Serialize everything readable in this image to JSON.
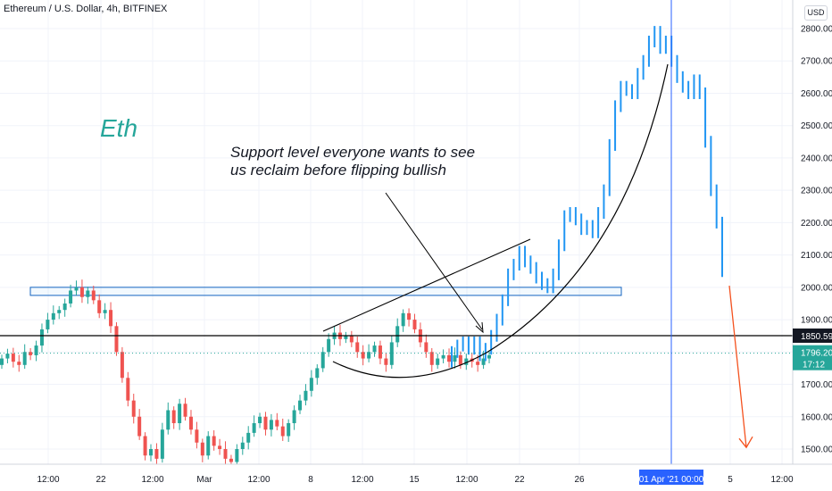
{
  "header": {
    "title": "Ethereum / U.S. Dollar, 4h, BITFINEX",
    "currency_button": "USD"
  },
  "annotations": {
    "label": "Eth",
    "note_line1": "Support level everyone wants to see",
    "note_line2": "us reclaim before flipping bullish"
  },
  "price_tags": {
    "black_line": "1850.59",
    "last_price": "1796.20",
    "countdown": "17:12"
  },
  "colors": {
    "up": "#26a69a",
    "down": "#ef5350",
    "heikin_blue": "#2196f3",
    "arrow": "#f4511e",
    "box": "#1565c0",
    "crosshair": "#2962ff"
  },
  "chart_data": {
    "type": "candlestick",
    "title": "Ethereum / U.S. Dollar, 4h, BITFINEX",
    "y_axis_ticks": [
      1500,
      1600,
      1700,
      1800,
      1900,
      2000,
      2100,
      2200,
      2300,
      2400,
      2500,
      2600,
      2700,
      2800
    ],
    "x_axis_ticks": [
      "12:00",
      "22",
      "12:00",
      "Mar",
      "12:00",
      "8",
      "12:00",
      "15",
      "12:00",
      "22",
      "26",
      "01 Apr '21  00:00",
      "5",
      "12:00"
    ],
    "ylim": [
      1455,
      2860
    ],
    "horizontal_level": 1850.59,
    "last_price": 1796.2,
    "resistance_box": [
      1975,
      2000
    ],
    "projected_arrow": {
      "from": 2005,
      "to": 1505
    },
    "series_candles_close": [
      1780,
      1795,
      1770,
      1760,
      1800,
      1790,
      1820,
      1870,
      1900,
      1920,
      1930,
      1950,
      1990,
      2000,
      1970,
      1990,
      1960,
      1920,
      1930,
      1880,
      1800,
      1720,
      1650,
      1600,
      1540,
      1480,
      1500,
      1470,
      1560,
      1620,
      1580,
      1640,
      1600,
      1560,
      1520,
      1480,
      1540,
      1510,
      1500,
      1470,
      1460,
      1500,
      1520,
      1550,
      1580,
      1600,
      1560,
      1590,
      1570,
      1540,
      1580,
      1620,
      1650,
      1680,
      1720,
      1750,
      1800,
      1840,
      1860,
      1840,
      1850,
      1830,
      1800,
      1780,
      1800,
      1820,
      1780,
      1760,
      1830,
      1880,
      1920,
      1900,
      1870,
      1830,
      1800,
      1760,
      1780,
      1790,
      1770,
      1790,
      1760,
      1780,
      1770,
      1760,
      1780,
      1790
    ],
    "series_ha_close": [
      1800,
      1820,
      1830,
      1810,
      1830,
      1790,
      1810,
      1850,
      1900,
      1960,
      2040,
      2070,
      2110,
      2080,
      2060,
      2030,
      2010,
      2000,
      2040,
      2130,
      2220,
      2230,
      2210,
      2180,
      2190,
      2170,
      2230,
      2300,
      2440,
      2560,
      2620,
      2610,
      2600,
      2660,
      2700,
      2760,
      2790,
      2740,
      2760,
      2700,
      2650,
      2620,
      2600,
      2640,
      2600,
      2450,
      2300,
      2200,
      2050
    ]
  }
}
